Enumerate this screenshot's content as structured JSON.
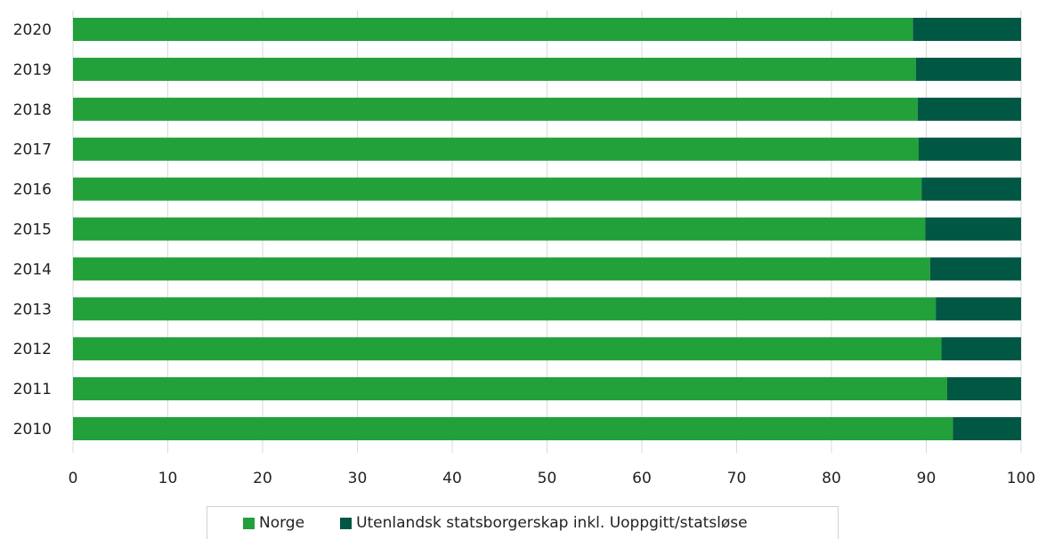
{
  "chart_data": {
    "type": "bar",
    "orientation": "horizontal",
    "stacked": true,
    "categories": [
      "2020",
      "2019",
      "2018",
      "2017",
      "2016",
      "2015",
      "2014",
      "2013",
      "2012",
      "2011",
      "2010"
    ],
    "series": [
      {
        "name": "Norge",
        "color": "#22a03a",
        "values": [
          88.6,
          88.9,
          89.1,
          89.2,
          89.5,
          89.9,
          90.4,
          91.0,
          91.6,
          92.2,
          92.8
        ]
      },
      {
        "name": "Utenlandsk statsborgerskap inkl. Uoppgitt/statsløse",
        "color": "#005743",
        "values": [
          11.4,
          11.1,
          10.9,
          10.8,
          10.5,
          10.1,
          9.6,
          9.0,
          8.4,
          7.8,
          7.2
        ]
      }
    ],
    "xlim": [
      0,
      100
    ],
    "xticks": [
      "0",
      "10",
      "20",
      "30",
      "40",
      "50",
      "60",
      "70",
      "80",
      "90",
      "100"
    ],
    "grid": true,
    "legend_position": "bottom"
  }
}
